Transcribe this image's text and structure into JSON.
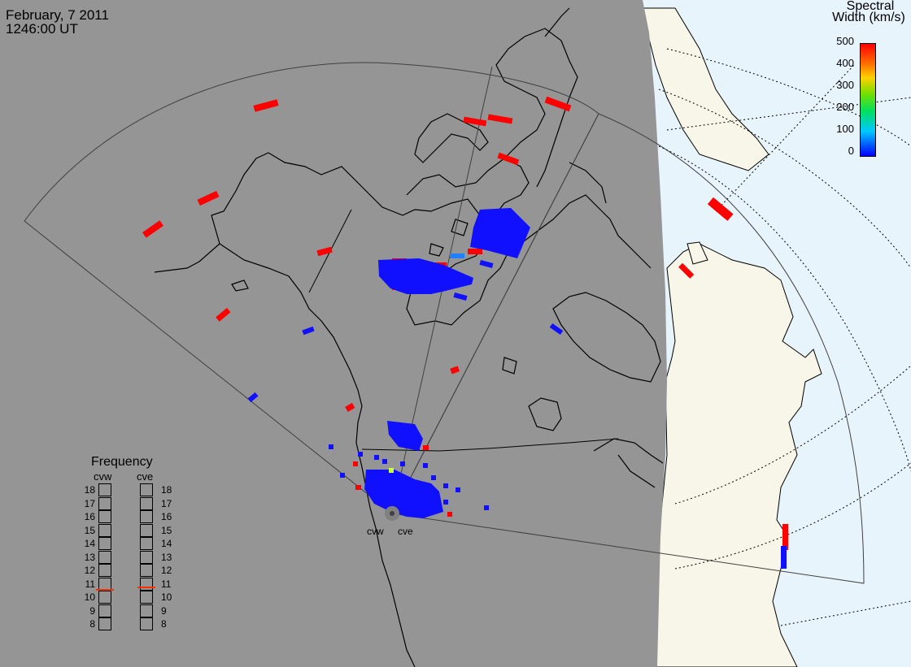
{
  "header": {
    "date": "February, 7 2011",
    "time": "1246:00 UT"
  },
  "colorbar": {
    "title_line1": "Spectral",
    "title_line2": "Width (km/s)",
    "ticks": [
      "500",
      "400",
      "300",
      "200",
      "100",
      "0"
    ],
    "gradient": [
      "#0000ff",
      "#00c8ff",
      "#00e060",
      "#70e000",
      "#ffd000",
      "#ff7000",
      "#ff0000"
    ]
  },
  "frequency": {
    "title": "Frequency",
    "radar_left": "cvw",
    "radar_right": "cve",
    "scale": [
      "18",
      "17",
      "16",
      "15",
      "14",
      "13",
      "12",
      "11",
      "10",
      "9",
      "8"
    ],
    "cvw_value_mhz": 10.6,
    "cve_value_mhz": 10.8,
    "marker_color": "#ff3000"
  },
  "radars": {
    "west_label": "cvw",
    "east_label": "cve"
  },
  "colors": {
    "night": "#959595",
    "day_ocean": "#e8f4fc",
    "day_land": "#f8f6e8",
    "coast": "#000000",
    "fov": "#404040"
  }
}
